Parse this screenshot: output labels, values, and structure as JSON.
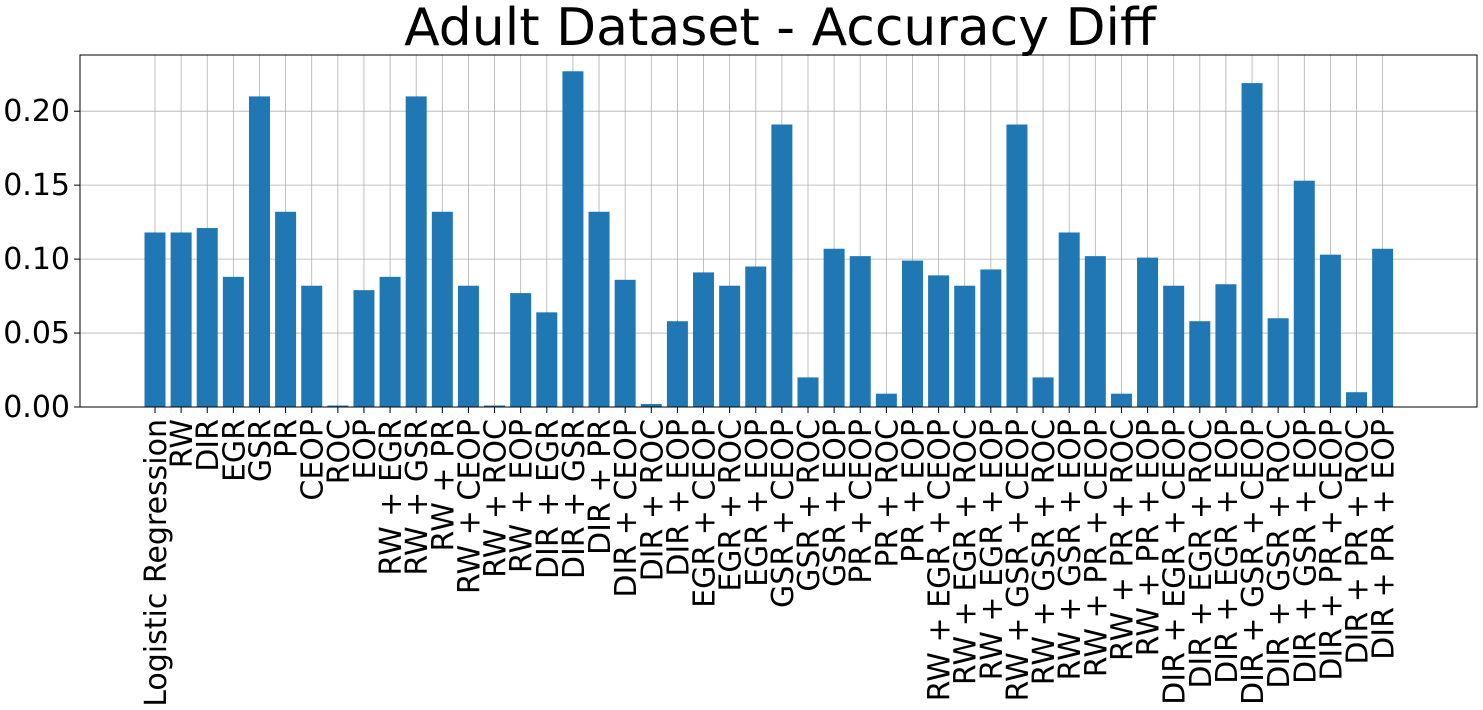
{
  "chart_data": {
    "type": "bar",
    "title": "Adult Dataset - Accuracy Diff",
    "xlabel": "",
    "ylabel": "",
    "ylim": [
      0,
      0.238
    ],
    "yticks": [
      "0.00",
      "0.05",
      "0.10",
      "0.15",
      "0.20"
    ],
    "grid": true,
    "bar_color": "#1f77b4",
    "categories": [
      "Logistic Regression",
      "RW",
      "DIR",
      "EGR",
      "GSR",
      "PR",
      "CEOP",
      "ROC",
      "EOP",
      "RW + EGR",
      "RW + GSR",
      "RW + PR",
      "RW + CEOP",
      "RW + ROC",
      "RW + EOP",
      "DIR + EGR",
      "DIR + GSR",
      "DIR + PR",
      "DIR + CEOP",
      "DIR + ROC",
      "DIR + EOP",
      "EGR + CEOP",
      "EGR + ROC",
      "EGR + EOP",
      "GSR + CEOP",
      "GSR + ROC",
      "GSR + EOP",
      "PR + CEOP",
      "PR + ROC",
      "PR + EOP",
      "RW + EGR + CEOP",
      "RW + EGR + ROC",
      "RW + EGR + EOP",
      "RW + GSR + CEOP",
      "RW + GSR + ROC",
      "RW + GSR + EOP",
      "RW + PR + CEOP",
      "RW + PR + ROC",
      "RW + PR + EOP",
      "DIR + EGR + CEOP",
      "DIR + EGR + ROC",
      "DIR + EGR + EOP",
      "DIR + GSR + CEOP",
      "DIR + GSR + ROC",
      "DIR + GSR + EOP",
      "DIR + PR + CEOP",
      "DIR + PR + ROC",
      "DIR + PR + EOP"
    ],
    "values": [
      0.118,
      0.118,
      0.121,
      0.088,
      0.21,
      0.132,
      0.082,
      0.001,
      0.079,
      0.088,
      0.21,
      0.132,
      0.082,
      0.001,
      0.077,
      0.064,
      0.227,
      0.132,
      0.086,
      0.002,
      0.058,
      0.091,
      0.082,
      0.095,
      0.191,
      0.02,
      0.107,
      0.102,
      0.009,
      0.099,
      0.089,
      0.082,
      0.093,
      0.191,
      0.02,
      0.118,
      0.102,
      0.009,
      0.101,
      0.082,
      0.058,
      0.083,
      0.219,
      0.06,
      0.153,
      0.103,
      0.01,
      0.107
    ]
  }
}
